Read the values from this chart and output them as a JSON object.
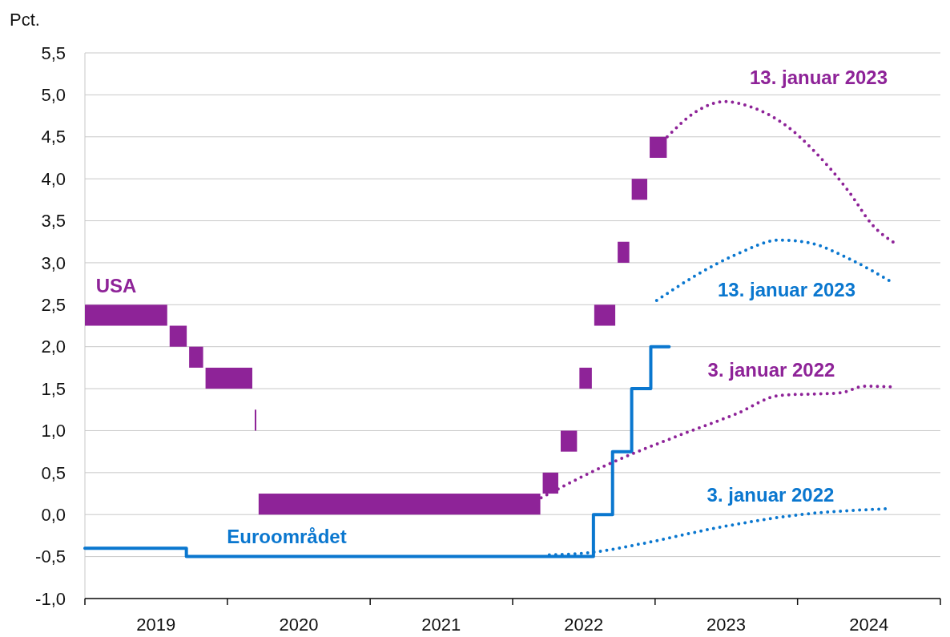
{
  "chart_data": {
    "type": "line",
    "ylabel": "Pct.",
    "xlim": [
      "2019-01-01",
      "2025-01-01"
    ],
    "xticks": [
      {
        "value": "2019-01-01",
        "label": null
      },
      {
        "value": "2019-07-02",
        "label": "2019"
      },
      {
        "value": "2020-01-01",
        "label": null
      },
      {
        "value": "2020-07-02",
        "label": "2020"
      },
      {
        "value": "2021-01-01",
        "label": null
      },
      {
        "value": "2021-07-02",
        "label": "2021"
      },
      {
        "value": "2022-01-01",
        "label": null
      },
      {
        "value": "2022-07-02",
        "label": "2022"
      },
      {
        "value": "2023-01-01",
        "label": null
      },
      {
        "value": "2023-07-02",
        "label": "2023"
      },
      {
        "value": "2024-01-01",
        "label": null
      },
      {
        "value": "2024-07-02",
        "label": "2024"
      },
      {
        "value": "2025-01-01",
        "label": null
      }
    ],
    "ylim": [
      -1,
      5.5
    ],
    "yticks": [
      {
        "value": -1,
        "label": "-1,0"
      },
      {
        "value": -0.5,
        "label": "-0,5"
      },
      {
        "value": 0,
        "label": "0,0"
      },
      {
        "value": 0.5,
        "label": "0,5"
      },
      {
        "value": 1,
        "label": "1,0"
      },
      {
        "value": 1.5,
        "label": "1,5"
      },
      {
        "value": 2,
        "label": "2,0"
      },
      {
        "value": 2.5,
        "label": "2,5"
      },
      {
        "value": 3,
        "label": "3,0"
      },
      {
        "value": 3.5,
        "label": "3,5"
      },
      {
        "value": 4,
        "label": "4,0"
      },
      {
        "value": 4.5,
        "label": "4,5"
      },
      {
        "value": 5,
        "label": "5,0"
      },
      {
        "value": 5.5,
        "label": "5,5"
      }
    ],
    "grid": "y",
    "series": [
      {
        "name": "USA",
        "type": "bar",
        "color": "#8e2398",
        "x": [
          "2019-04-18",
          "2019-08-28",
          "2019-10-13",
          "2020-01-05",
          "2020-03-13",
          "2021-03-17",
          "2022-04-08",
          "2022-05-25",
          "2022-07-07",
          "2022-08-25",
          "2022-10-12",
          "2022-11-22",
          "2023-01-09"
        ],
        "base": [
          2.25,
          2,
          1.75,
          1.5,
          1,
          0,
          0.25,
          0.75,
          1.5,
          2.25,
          3,
          3.75,
          4.25
        ],
        "values": [
          0.25,
          0.25,
          0.25,
          0.25,
          0.25,
          0.25,
          0.25,
          0.25,
          0.25,
          0.25,
          0.25,
          0.25,
          0.25
        ]
      },
      {
        "name": "Euroområdet",
        "type": "step",
        "color": "#0a77cf",
        "line_style": "solid",
        "x": [
          "2019-01-01",
          "2019-09-18",
          "2022-07-27",
          "2022-09-14",
          "2022-11-02",
          "2022-12-21",
          "2023-02-06"
        ],
        "values": [
          -0.4,
          -0.5,
          0,
          0.75,
          1.5,
          2,
          2
        ]
      },
      {
        "name": "13. januar 2023",
        "color": "#8e2398",
        "line_style": "dotted",
        "x": [
          "2023-02-01",
          "2023-04-16",
          "2023-06-27",
          "2023-09-07",
          "2023-11-28",
          "2024-02-19",
          "2024-05-11",
          "2024-07-11",
          "2024-09-11"
        ],
        "values": [
          4.5,
          4.8,
          4.92,
          4.85,
          4.65,
          4.3,
          3.85,
          3.45,
          3.22
        ]
      },
      {
        "name": "13. januar 2023",
        "color": "#0a77cf",
        "line_style": "dotted",
        "x": [
          "2023-01-05",
          "2023-04-16",
          "2023-07-28",
          "2023-11-17",
          "2024-01-29",
          "2024-05-11",
          "2024-09-05"
        ],
        "values": [
          2.55,
          2.85,
          3.1,
          3.27,
          3.24,
          3.05,
          2.75
        ]
      },
      {
        "name": "3. januar 2022",
        "color": "#8e2398",
        "line_style": "dotted",
        "x": [
          "2022-03-15",
          "2022-09-03",
          "2023-03-07",
          "2023-07-28",
          "2023-11-17",
          "2024-04-20",
          "2024-06-20",
          "2024-09-01"
        ],
        "values": [
          0.2,
          0.6,
          0.95,
          1.2,
          1.42,
          1.45,
          1.53,
          1.52
        ]
      },
      {
        "name": "3. januar 2022",
        "color": "#0a77cf",
        "line_style": "dotted",
        "x": [
          "2022-04-05",
          "2022-07-24",
          "2022-11-24",
          "2023-06-17",
          "2024-01-08",
          "2024-08-21"
        ],
        "values": [
          -0.48,
          -0.45,
          -0.35,
          -0.15,
          0,
          0.07
        ]
      }
    ]
  }
}
